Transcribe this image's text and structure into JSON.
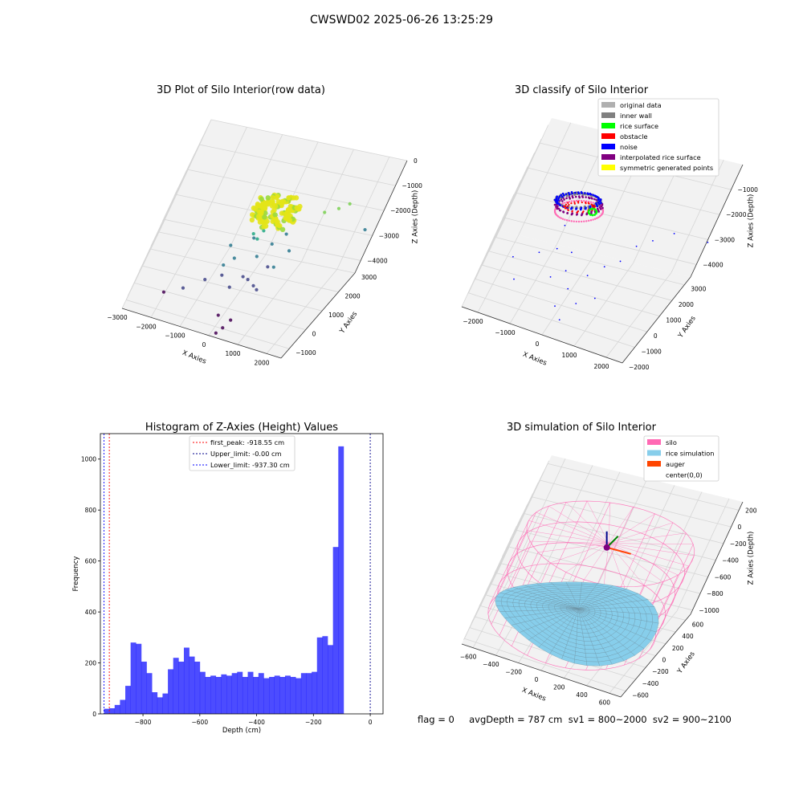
{
  "suptitle": "CWSWD02 2025-06-26 13:25:29",
  "status_line": "flag = 0     avgDepth = 787 cm  sv1 = 800~2000  sv2 = 900~2100",
  "colors": {
    "silo": "#ff69b4",
    "rice_sim": "#87ceeb",
    "auger": "#ff4500",
    "histogram": "#0000ff",
    "first_peak": "#ff0000",
    "upper": "#00008b",
    "lower": "#0000ff",
    "original": "#b0b0b0",
    "inner_wall": "#808080",
    "rice_surface": "#00ff00",
    "obstacle": "#ff0000",
    "noise": "#0000ff",
    "interpolated": "#800080",
    "symmetric": "#ffff00"
  },
  "chart_data": [
    {
      "type": "scatter",
      "projection": "3d",
      "title": "3D Plot of Silo Interior(row data)",
      "xlabel": "X Axies",
      "ylabel": "Y Axies",
      "zlabel": "Z Axies (Depth)",
      "xlim": [
        -3000,
        2500
      ],
      "ylim": [
        -1500,
        3000
      ],
      "zlim": [
        -4500,
        0
      ],
      "xticks": [
        -3000,
        -2000,
        -1000,
        0,
        1000,
        2000
      ],
      "yticks": [
        -1000,
        0,
        1000,
        2000,
        3000
      ],
      "zticks": [
        0,
        -1000,
        -2000,
        -3000,
        -4000
      ],
      "xtick_labels": [
        "−3000",
        "−2000",
        "−1000",
        "0",
        "1000",
        "2000"
      ],
      "ytick_labels": [
        "−1000",
        "0",
        "1000",
        "2000",
        "3000"
      ],
      "ztick_labels": [
        "0",
        "−1000",
        "−2000",
        "−3000",
        "−4000"
      ],
      "colormap": "viridis",
      "dense_cluster": {
        "center": [
          0,
          600
        ],
        "radius": 650,
        "z_range": [
          -1300,
          -800
        ]
      },
      "points": [
        [
          -300,
          400,
          -1900
        ],
        [
          -150,
          600,
          -2200
        ],
        [
          100,
          300,
          -2600
        ],
        [
          300,
          800,
          -2400
        ],
        [
          -500,
          200,
          -2800
        ],
        [
          -700,
          0,
          -3000
        ],
        [
          200,
          -100,
          -3200
        ],
        [
          500,
          600,
          -3100
        ],
        [
          800,
          1200,
          -2800
        ],
        [
          -1000,
          -400,
          -3400
        ],
        [
          -1500,
          -700,
          -3700
        ],
        [
          -2000,
          -900,
          -3900
        ],
        [
          600,
          -200,
          -3400
        ],
        [
          -200,
          -300,
          -3500
        ],
        [
          0,
          100,
          -3300
        ],
        [
          400,
          200,
          -3600
        ],
        [
          1200,
          1700,
          -1500
        ],
        [
          1500,
          1900,
          -1400
        ],
        [
          1700,
          2100,
          -1300
        ],
        [
          2300,
          2700,
          -2600
        ],
        [
          -100,
          -700,
          -4300
        ],
        [
          300,
          -500,
          -4500
        ],
        [
          200,
          -700,
          -4700
        ],
        [
          100,
          -900,
          -4800
        ],
        [
          -800,
          500,
          -2600
        ],
        [
          -300,
          1000,
          -2500
        ],
        [
          500,
          1300,
          -2300
        ],
        [
          -600,
          -100,
          -3300
        ],
        [
          700,
          400,
          -2900
        ],
        [
          -100,
          800,
          -2000
        ]
      ]
    },
    {
      "type": "scatter",
      "projection": "3d",
      "title": "3D classify of Silo Interior",
      "xlabel": "X Axies",
      "ylabel": "Y Axies",
      "zlabel": "Z Axies (Depth)",
      "xlim": [
        -2500,
        2500
      ],
      "ylim": [
        -2000,
        3500
      ],
      "zlim": [
        -4500,
        0
      ],
      "xticks": [
        -2000,
        -1000,
        0,
        1000,
        2000
      ],
      "yticks": [
        -2000,
        -1000,
        0,
        1000,
        2000,
        3000
      ],
      "zticks": [
        -1000,
        -2000,
        -3000,
        -4000
      ],
      "xtick_labels": [
        "−2000",
        "−1000",
        "0",
        "1000",
        "2000"
      ],
      "ytick_labels": [
        "−2000",
        "−1000",
        "0",
        "1000",
        "2000",
        "3000"
      ],
      "ztick_labels": [
        "−1000",
        "−2000",
        "−3000",
        "−4000"
      ],
      "legend_position": "upper right",
      "series": [
        {
          "name": "original data",
          "color": "#b0b0b0"
        },
        {
          "name": "inner wall",
          "color": "#808080"
        },
        {
          "name": "rice surface",
          "color": "#00ff00"
        },
        {
          "name": "obstacle",
          "color": "#ff0000"
        },
        {
          "name": "noise",
          "color": "#0000ff"
        },
        {
          "name": "interpolated rice surface",
          "color": "#800080"
        },
        {
          "name": "symmetric generated points",
          "color": "#ffff00"
        }
      ],
      "noise_points": [
        [
          -1500,
          -500,
          -3800
        ],
        [
          -1200,
          200,
          -3000
        ],
        [
          -800,
          400,
          -2800
        ],
        [
          -600,
          -200,
          -3500
        ],
        [
          -300,
          100,
          -3300
        ],
        [
          0,
          -400,
          -3600
        ],
        [
          300,
          200,
          -3300
        ],
        [
          600,
          500,
          -3000
        ],
        [
          900,
          900,
          -2900
        ],
        [
          1400,
          1600,
          -2300
        ],
        [
          1800,
          2000,
          -2100
        ],
        [
          -100,
          -800,
          -4100
        ],
        [
          200,
          -1000,
          -4400
        ],
        [
          2600,
          2900,
          -2700
        ],
        [
          -900,
          900,
          -2200
        ],
        [
          400,
          -600,
          -3900
        ],
        [
          -400,
          600,
          -2900
        ],
        [
          1100,
          1200,
          -2400
        ],
        [
          -1800,
          -200,
          -3200
        ],
        [
          800,
          -300,
          -3700
        ]
      ]
    },
    {
      "type": "bar",
      "title": "Histogram of Z-Axies (Height) Values",
      "xlabel": "Depth (cm)",
      "ylabel": "Frequency",
      "xlim": [
        -950,
        45
      ],
      "ylim": [
        0,
        1100
      ],
      "xticks": [
        -800,
        -600,
        -400,
        -200,
        0
      ],
      "yticks": [
        0,
        200,
        400,
        600,
        800,
        1000
      ],
      "xtick_labels": [
        "−800",
        "−600",
        "−400",
        "−200",
        "0"
      ],
      "ytick_labels": [
        "0",
        "200",
        "400",
        "600",
        "800",
        "1000"
      ],
      "bin_start": -937.3,
      "bin_width": 18.746,
      "values": [
        20,
        22,
        35,
        55,
        110,
        280,
        275,
        205,
        160,
        85,
        65,
        80,
        175,
        220,
        205,
        260,
        225,
        205,
        165,
        145,
        150,
        145,
        155,
        150,
        160,
        165,
        145,
        165,
        145,
        160,
        140,
        145,
        150,
        145,
        150,
        145,
        140,
        160,
        160,
        165,
        300,
        305,
        270,
        655,
        1050
      ],
      "vlines": [
        {
          "x": -918.55,
          "label": "first_peak: -918.55 cm",
          "color": "#ff0000"
        },
        {
          "x": -0.0,
          "label": "Upper_limit: -0.00 cm",
          "color": "#00008b"
        },
        {
          "x": -937.3,
          "label": "Lower_limit: -937.30 cm",
          "color": "#0000ff"
        }
      ],
      "legend_position": "upper center"
    },
    {
      "type": "surface",
      "projection": "3d",
      "title": "3D simulation of Silo Interior",
      "xlabel": "X Axies",
      "ylabel": "Y Axies",
      "zlabel": "Z Axies (Depth)",
      "xlim": [
        -700,
        700
      ],
      "ylim": [
        -700,
        700
      ],
      "zlim": [
        -1050,
        300
      ],
      "xticks": [
        -600,
        -400,
        -200,
        0,
        200,
        400,
        600
      ],
      "yticks": [
        -600,
        -400,
        -200,
        0,
        200,
        400,
        600
      ],
      "zticks": [
        200,
        0,
        -200,
        -400,
        -600,
        -800,
        -1000
      ],
      "xtick_labels": [
        "−600",
        "−400",
        "−200",
        "0",
        "200",
        "400",
        "600"
      ],
      "ytick_labels": [
        "−600",
        "−400",
        "−200",
        "0",
        "200",
        "400",
        "600"
      ],
      "ztick_labels": [
        "200",
        "0",
        "−200",
        "−400",
        "−600",
        "−800",
        "−1000"
      ],
      "silo_radius": 640,
      "silo_top": 0,
      "silo_bottom": -1000,
      "rice_mean_depth": -787,
      "legend_position": "upper right",
      "series": [
        {
          "name": "silo",
          "color": "#ff69b4"
        },
        {
          "name": "rice simulation",
          "color": "#87ceeb"
        },
        {
          "name": "auger",
          "color": "#ff4500"
        },
        {
          "name": "center(0,0)",
          "color": "#ffffff"
        }
      ]
    }
  ]
}
